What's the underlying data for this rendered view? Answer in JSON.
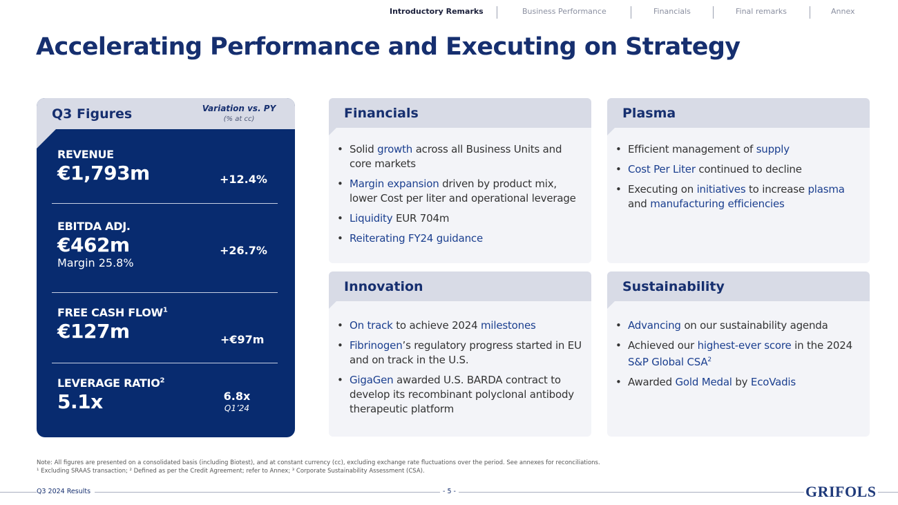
{
  "nav": {
    "items": [
      "Introductory Remarks",
      "Business Performance",
      "Financials",
      "Final remarks",
      "Annex"
    ]
  },
  "page": {
    "title": "Accelerating Performance and Executing on Strategy"
  },
  "figures": {
    "title": "Q3 Figures",
    "variation_label": "Variation vs. PY",
    "variation_sub": "(% at cc)",
    "metrics": [
      {
        "label": "REVENUE",
        "value": "€1,793m",
        "variation": "+12.4%"
      },
      {
        "label": "EBITDA ADJ.",
        "value": "€462m",
        "sub": "Margin 25.8%",
        "variation": "+26.7%"
      },
      {
        "label": "FREE CASH FLOW",
        "sup": "1",
        "value": "€127m",
        "variation": "+€97m"
      },
      {
        "label": "LEVERAGE RATIO",
        "sup": "2",
        "value": "5.1x",
        "variation": "6.8x",
        "variation_sub": "Q1’24"
      }
    ]
  },
  "cards": {
    "financials": {
      "title": "Financials",
      "bullets": [
        {
          "a": "Solid ",
          "b": "growth",
          "c": " across all Business Units and core markets"
        },
        {
          "b": "Margin expansion",
          "c": " driven by product mix, lower Cost per liter and operational leverage"
        },
        {
          "b": "Liquidity",
          "c": " EUR 704m"
        },
        {
          "b": "Reiterating FY24 guidance"
        }
      ]
    },
    "plasma": {
      "title": "Plasma",
      "bullets": [
        {
          "a": "Efficient management of ",
          "b": "supply"
        },
        {
          "b": "Cost Per Liter",
          "c": " continued to decline"
        },
        {
          "a": "Executing on ",
          "b": "initiatives",
          "c": " to increase ",
          "d": "plasma",
          "e": " and ",
          "f": "manufacturing efficiencies"
        }
      ]
    },
    "innovation": {
      "title": "Innovation",
      "bullets": [
        {
          "b": "On track",
          "c": " to achieve 2024 ",
          "d": "milestones"
        },
        {
          "b": "Fibrinogen",
          "c": "’s regulatory progress started in EU and on track in the U.S."
        },
        {
          "b": "GigaGen",
          "c": " awarded U.S. BARDA contract to develop its recombinant polyclonal antibody therapeutic platform"
        }
      ]
    },
    "sustainability": {
      "title": "Sustainability",
      "bullets": [
        {
          "b": "Advancing",
          "c": " on our sustainability agenda"
        },
        {
          "a": "Achieved our ",
          "b": "highest-ever score",
          "c": " in the 2024 ",
          "d": "S&P Global CSA",
          "sup": "2"
        },
        {
          "a": "Awarded ",
          "b": "Gold Medal",
          "c": " by ",
          "d": "EcoVadis"
        }
      ]
    }
  },
  "footer": {
    "note_1": "Note: All figures are presented on a consolidated basis (including Biotest), and at constant currency (cc), excluding exchange rate fluctuations over the period. See annexes for reconciliations.",
    "note_2": "¹ Excluding SRAAS transaction; ² Defined as per the Credit Agreement; refer to Annex; ³ Corporate Sustainability Assessment (CSA).",
    "left": "Q3 2024 Results",
    "page": "- 5 -",
    "logo": "GRIFOLS"
  },
  "colors": {
    "navy": "#082b6f",
    "title": "#162f6f",
    "accent_text": "#1b3f8f",
    "card_bg": "#f3f4f8",
    "card_head": "#d8dbe6"
  }
}
